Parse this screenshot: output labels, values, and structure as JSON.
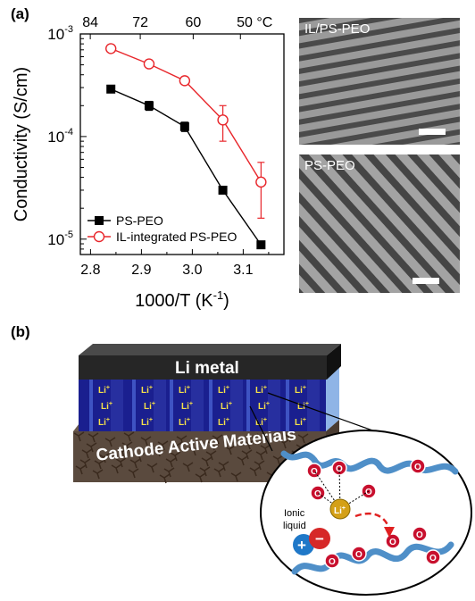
{
  "panel_a_label": "(a)",
  "panel_b_label": "(b)",
  "chart_data": {
    "type": "scatter",
    "xlabel": "1000/T (K",
    "xlabel_sup": "-1",
    "xlabel_close": ")",
    "ylabel": "Conductivity (S/cm)",
    "xlim": [
      2.78,
      3.18
    ],
    "ylim_log10": [
      -5.15,
      -3.0
    ],
    "y_scale": "log",
    "x_ticks": [
      "2.8",
      "2.9",
      "3.0",
      "3.1"
    ],
    "x_tick_values": [
      2.8,
      2.9,
      3.0,
      3.1
    ],
    "y_ticks": [
      {
        "base": "10",
        "exp": "-3",
        "value": -3
      },
      {
        "base": "10",
        "exp": "-4",
        "value": -4
      },
      {
        "base": "10",
        "exp": "-5",
        "value": -5
      }
    ],
    "top_axis_label": "50 °C",
    "top_ticks": [
      {
        "label": "84",
        "x": 2.7995
      },
      {
        "label": "72",
        "x": 2.8977
      },
      {
        "label": "60",
        "x": 3.0017
      },
      {
        "label": "50",
        "x": 3.0945
      }
    ],
    "legend_position": "bottom-left",
    "series": [
      {
        "name": "PS-PEO",
        "color": "#000000",
        "marker": "filled-square",
        "x": [
          2.84,
          2.915,
          2.985,
          3.06,
          3.135
        ],
        "y": [
          0.00029,
          0.0002,
          0.000125,
          3e-05,
          8.8e-06
        ],
        "y_err_low": [
          0.00029,
          0.00018,
          0.000112,
          2.8e-05,
          8.8e-06
        ],
        "y_err_high": [
          0.00029,
          0.00022,
          0.000138,
          3.2e-05,
          8.8e-06
        ]
      },
      {
        "name": "IL-integrated PS-PEO",
        "color": "#e8262b",
        "marker": "open-circle",
        "x": [
          2.84,
          2.915,
          2.985,
          3.06,
          3.135
        ],
        "y": [
          0.00072,
          0.00051,
          0.00035,
          0.000145,
          3.6e-05
        ],
        "y_err_low": [
          0.00067,
          0.00048,
          0.00033,
          9e-05,
          1.6e-05
        ],
        "y_err_high": [
          0.00077,
          0.00054,
          0.00037,
          0.0002,
          5.6e-05
        ]
      }
    ]
  },
  "micrographs": [
    {
      "label": "IL/PS-PEO"
    },
    {
      "label": "PS-PEO"
    }
  ],
  "schematic": {
    "top_layer_label": "Li metal",
    "bottom_layer_label": "Cathode Active Materials",
    "ion_label": "Li",
    "ion_charge": "+",
    "ionic_liquid_label_line1": "Ionic",
    "ionic_liquid_label_line2": "liquid",
    "oxygen_label": "O",
    "li_center_label": "Li",
    "plus_sign": "+",
    "minus_sign": "−",
    "colors": {
      "li_metal": "#262626",
      "electrolyte": "#1a1f8f",
      "cathode": "#5a4a3e",
      "polymer_chain": "#4f8fc8",
      "oxygen": "#c8102e",
      "li_ion": "#d4a017",
      "cation": "#1f78c8",
      "anion": "#d62828",
      "arrow": "#e02020"
    }
  }
}
